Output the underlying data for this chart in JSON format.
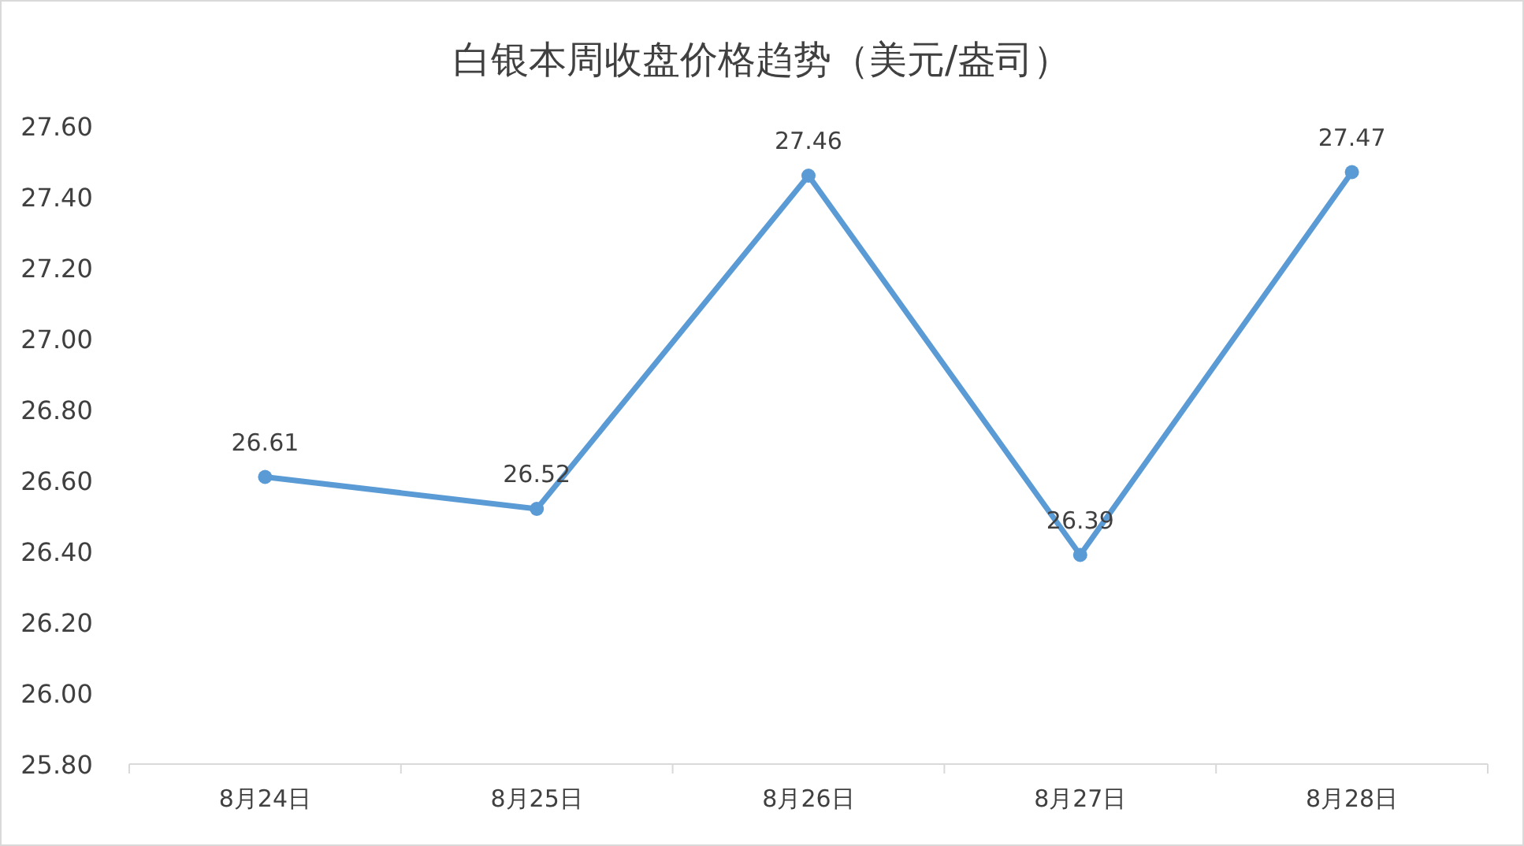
{
  "chart_data": {
    "type": "line",
    "title": "白银本周收盘价格趋势（美元/盎司）",
    "categories": [
      "8月24日",
      "8月25日",
      "8月26日",
      "8月27日",
      "8月28日"
    ],
    "series": [
      {
        "color": "#5b9bd5",
        "values": [
          26.61,
          26.52,
          27.46,
          26.39,
          27.47
        ]
      }
    ],
    "ylim": [
      25.8,
      27.6
    ],
    "yticks": [
      {
        "value": 25.8,
        "label": "25.80"
      },
      {
        "value": 26.0,
        "label": "26.00"
      },
      {
        "value": 26.2,
        "label": "26.20"
      },
      {
        "value": 26.4,
        "label": "26.40"
      },
      {
        "value": 26.6,
        "label": "26.60"
      },
      {
        "value": 26.8,
        "label": "26.80"
      },
      {
        "value": 27.0,
        "label": "27.00"
      },
      {
        "value": 27.2,
        "label": "27.20"
      },
      {
        "value": 27.4,
        "label": "27.40"
      },
      {
        "value": 27.6,
        "label": "27.60"
      }
    ],
    "data_labels": true,
    "marker": "circle",
    "grid": false
  }
}
